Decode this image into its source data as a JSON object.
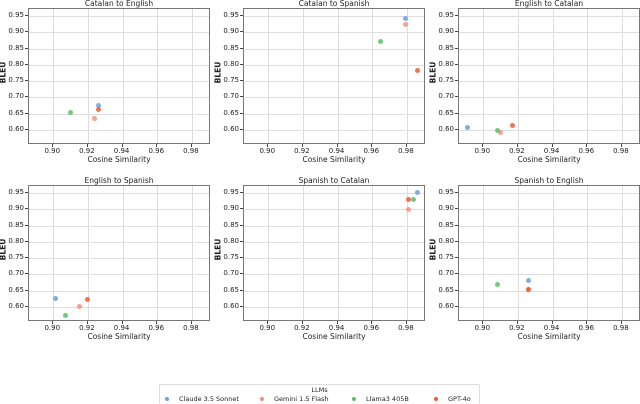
{
  "chart_data": [
    {
      "type": "scatter",
      "title": "Catalan to English",
      "xlabel": "Cosine Similarity",
      "ylabel": "BLEU",
      "xlim": [
        0.886,
        0.991
      ],
      "ylim": [
        0.554,
        0.9715
      ],
      "xticks": [
        "0.90",
        "0.92",
        "0.94",
        "0.96",
        "0.98"
      ],
      "yticks": [
        "0.60",
        "0.65",
        "0.70",
        "0.75",
        "0.80",
        "0.85",
        "0.90",
        "0.95"
      ],
      "grid": true,
      "series": [
        {
          "name": "Claude 3.5 Sonnet",
          "x": [
            0.926
          ],
          "y": [
            0.674
          ]
        },
        {
          "name": "Gemini 1.5 Flash",
          "x": [
            0.924
          ],
          "y": [
            0.636
          ]
        },
        {
          "name": "Llama3 405B",
          "x": [
            0.91
          ],
          "y": [
            0.655
          ]
        },
        {
          "name": "GPT-4o",
          "x": [
            0.926
          ],
          "y": [
            0.663
          ]
        }
      ]
    },
    {
      "type": "scatter",
      "title": "Catalan to Spanish",
      "xlabel": "Cosine Similarity",
      "ylabel": "BLEU",
      "xlim": [
        0.886,
        0.991
      ],
      "ylim": [
        0.554,
        0.9715
      ],
      "xticks": [
        "0.90",
        "0.92",
        "0.94",
        "0.96",
        "0.98"
      ],
      "yticks": [
        "0.60",
        "0.65",
        "0.70",
        "0.75",
        "0.80",
        "0.85",
        "0.90",
        "0.95"
      ],
      "grid": true,
      "series": [
        {
          "name": "Claude 3.5 Sonnet",
          "x": [
            0.979
          ],
          "y": [
            0.942
          ]
        },
        {
          "name": "Gemini 1.5 Flash",
          "x": [
            0.979
          ],
          "y": [
            0.923
          ]
        },
        {
          "name": "Llama3 405B",
          "x": [
            0.965
          ],
          "y": [
            0.873
          ]
        },
        {
          "name": "GPT-4o",
          "x": [
            0.986
          ],
          "y": [
            0.782
          ]
        }
      ]
    },
    {
      "type": "scatter",
      "title": "English to Catalan",
      "xlabel": "Cosine Similarity",
      "ylabel": "BLEU",
      "xlim": [
        0.886,
        0.991
      ],
      "ylim": [
        0.554,
        0.9715
      ],
      "xticks": [
        "0.90",
        "0.92",
        "0.94",
        "0.96",
        "0.98"
      ],
      "yticks": [
        "0.60",
        "0.65",
        "0.70",
        "0.75",
        "0.80",
        "0.85",
        "0.90",
        "0.95"
      ],
      "grid": true,
      "series": [
        {
          "name": "Claude 3.5 Sonnet",
          "x": [
            0.891
          ],
          "y": [
            0.609
          ]
        },
        {
          "name": "Gemini 1.5 Flash",
          "x": [
            0.91
          ],
          "y": [
            0.591
          ]
        },
        {
          "name": "Llama3 405B",
          "x": [
            0.908
          ],
          "y": [
            0.6
          ]
        },
        {
          "name": "GPT-4o",
          "x": [
            0.917
          ],
          "y": [
            0.614
          ]
        }
      ]
    },
    {
      "type": "scatter",
      "title": "English to Spanish",
      "xlabel": "Cosine Similarity",
      "ylabel": "BLEU",
      "xlim": [
        0.886,
        0.991
      ],
      "ylim": [
        0.554,
        0.9715
      ],
      "xticks": [
        "0.90",
        "0.92",
        "0.94",
        "0.96",
        "0.98"
      ],
      "yticks": [
        "0.60",
        "0.65",
        "0.70",
        "0.75",
        "0.80",
        "0.85",
        "0.90",
        "0.95"
      ],
      "grid": true,
      "series": [
        {
          "name": "Claude 3.5 Sonnet",
          "x": [
            0.901
          ],
          "y": [
            0.625
          ]
        },
        {
          "name": "Gemini 1.5 Flash",
          "x": [
            0.915
          ],
          "y": [
            0.602
          ]
        },
        {
          "name": "Llama3 405B",
          "x": [
            0.907
          ],
          "y": [
            0.575
          ]
        },
        {
          "name": "GPT-4o",
          "x": [
            0.92
          ],
          "y": [
            0.623
          ]
        }
      ]
    },
    {
      "type": "scatter",
      "title": "Spanish to Catalan",
      "xlabel": "Cosine Similarity",
      "ylabel": "BLEU",
      "xlim": [
        0.886,
        0.991
      ],
      "ylim": [
        0.554,
        0.9715
      ],
      "xticks": [
        "0.90",
        "0.92",
        "0.94",
        "0.96",
        "0.98"
      ],
      "yticks": [
        "0.60",
        "0.65",
        "0.70",
        "0.75",
        "0.80",
        "0.85",
        "0.90",
        "0.95"
      ],
      "grid": true,
      "series": [
        {
          "name": "Claude 3.5 Sonnet",
          "x": [
            0.986
          ],
          "y": [
            0.951
          ]
        },
        {
          "name": "Gemini 1.5 Flash",
          "x": [
            0.981
          ],
          "y": [
            0.898
          ]
        },
        {
          "name": "Llama3 405B",
          "x": [
            0.984
          ],
          "y": [
            0.93
          ]
        },
        {
          "name": "GPT-4o",
          "x": [
            0.981
          ],
          "y": [
            0.93
          ]
        }
      ]
    },
    {
      "type": "scatter",
      "title": "Spanish to English",
      "xlabel": "Cosine Similarity",
      "ylabel": "BLEU",
      "xlim": [
        0.886,
        0.991
      ],
      "ylim": [
        0.554,
        0.9715
      ],
      "xticks": [
        "0.90",
        "0.92",
        "0.94",
        "0.96",
        "0.98"
      ],
      "yticks": [
        "0.60",
        "0.65",
        "0.70",
        "0.75",
        "0.80",
        "0.85",
        "0.90",
        "0.95"
      ],
      "grid": true,
      "series": [
        {
          "name": "Claude 3.5 Sonnet",
          "x": [
            0.926
          ],
          "y": [
            0.681
          ]
        },
        {
          "name": "Gemini 1.5 Flash",
          "x": [
            0.926
          ],
          "y": [
            0.654
          ]
        },
        {
          "name": "Llama3 405B",
          "x": [
            0.908
          ],
          "y": [
            0.668
          ]
        },
        {
          "name": "GPT-4o",
          "x": [
            0.926
          ],
          "y": [
            0.653
          ]
        }
      ]
    }
  ],
  "legend": {
    "title": "LLMs",
    "position": "bottom-center",
    "items": [
      {
        "label": "Claude 3.5 Sonnet",
        "color": "#6f9fd8"
      },
      {
        "label": "Gemini 1.5 Flash",
        "color": "#f4907a"
      },
      {
        "label": "Llama3 405B",
        "color": "#5cbf6a"
      },
      {
        "label": "GPT-4o",
        "color": "#ef5a3a"
      }
    ]
  },
  "colors": {
    "Claude 3.5 Sonnet": "#6f9fd8",
    "Gemini 1.5 Flash": "#f4907a",
    "Llama3 405B": "#5cbf6a",
    "GPT-4o": "#ef5a3a"
  }
}
